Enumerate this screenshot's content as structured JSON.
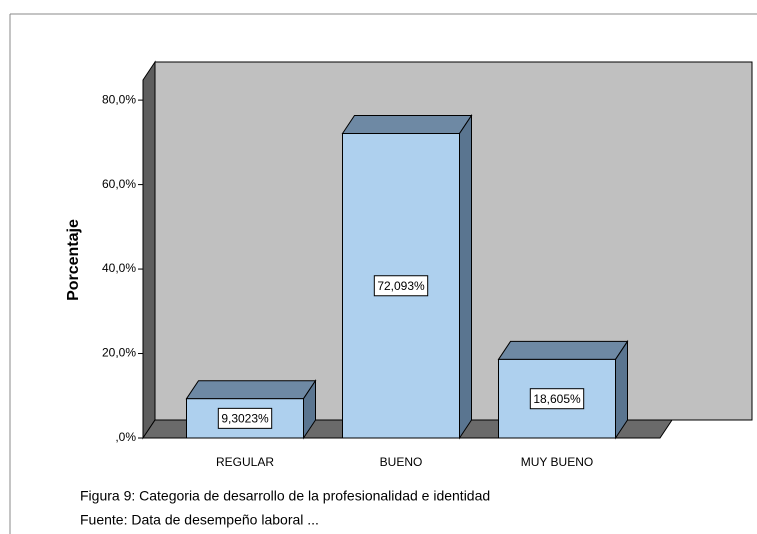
{
  "chart_data": {
    "type": "bar3d",
    "y_label": "Porcentaje",
    "categories": [
      "REGULAR",
      "BUENO",
      "MUY BUENO"
    ],
    "values": [
      9.3023,
      72.093,
      18.605
    ],
    "value_labels": [
      "9,3023%",
      "72,093%",
      "18,605%"
    ],
    "color": "#aed0ee",
    "ylim": [
      0,
      85
    ],
    "yticks": [
      {
        "value": 0,
        "label": ",0%"
      },
      {
        "value": 20,
        "label": "20,0%"
      },
      {
        "value": 40,
        "label": "40,0%"
      },
      {
        "value": 60,
        "label": "60,0%"
      },
      {
        "value": 80,
        "label": "80,0%"
      }
    ],
    "caption": "Figura 9: Categoria de desarrollo de la profesionalidad e identidad",
    "source": "Fuente: Data de desempeño laboral ..."
  }
}
